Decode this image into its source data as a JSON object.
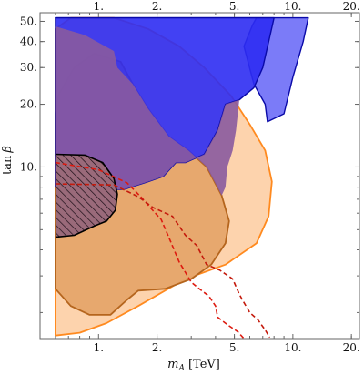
{
  "chart_data": {
    "type": "area",
    "xlabel_parts": {
      "symbol": "m",
      "subscript": "A",
      "unit": "[TeV]"
    },
    "ylabel_parts": {
      "main": "tan",
      "greek": "β"
    },
    "x_scale": "log",
    "y_scale": "log",
    "xlim": [
      0.5,
      22
    ],
    "ylim": [
      1.5,
      55
    ],
    "x_ticks_bottom": [
      {
        "value": 1,
        "label": "1."
      },
      {
        "value": 2,
        "label": "2."
      },
      {
        "value": 5,
        "label": "5."
      },
      {
        "value": 10,
        "label": "10."
      },
      {
        "value": 20,
        "label": "20."
      }
    ],
    "x_ticks_top": [
      {
        "value": 1,
        "label": "1."
      },
      {
        "value": 2,
        "label": "2."
      },
      {
        "value": 5,
        "label": "5."
      },
      {
        "value": 10,
        "label": "10."
      },
      {
        "value": 20,
        "label": "20."
      }
    ],
    "y_ticks": [
      {
        "value": 10,
        "label": "10."
      },
      {
        "value": 20,
        "label": "20."
      },
      {
        "value": 30,
        "label": "30."
      },
      {
        "value": 40,
        "label": "40."
      },
      {
        "value": 50,
        "label": "50."
      }
    ],
    "colors": {
      "light_orange_fill": "#fdd3ad",
      "light_orange_edge": "#ff8a1f",
      "medium_orange_fill": "#e6a56a",
      "medium_orange_edge": "#b5651d",
      "blue_fill": "#2d2cf2",
      "blue_edge": "#0a0aa8",
      "light_blue_fill": "#7b7bf8",
      "purple_fill": "#8a5a9e",
      "dashed_red": "#dd1b10",
      "dashed_red_2": "#c41a0c",
      "hatched_edge": "#000000"
    },
    "regions": [
      {
        "id": "light-orange-region",
        "points": [
          [
            0.6,
            1.55
          ],
          [
            0.8,
            1.6
          ],
          [
            1.1,
            1.78
          ],
          [
            1.6,
            2.15
          ],
          [
            2.8,
            2.9
          ],
          [
            4.5,
            3.4
          ],
          [
            6.5,
            4.3
          ],
          [
            7.5,
            5.8
          ],
          [
            7.8,
            8.5
          ],
          [
            7.2,
            12
          ],
          [
            6,
            16
          ],
          [
            4.8,
            22
          ],
          [
            3.5,
            30
          ],
          [
            2.6,
            38
          ],
          [
            1.8,
            46
          ],
          [
            1.2,
            52
          ],
          [
            0.72,
            52
          ],
          [
            0.6,
            46
          ]
        ]
      },
      {
        "id": "medium-orange-region",
        "points": [
          [
            0.6,
            2.6
          ],
          [
            0.72,
            2.15
          ],
          [
            0.9,
            1.95
          ],
          [
            1.15,
            1.95
          ],
          [
            1.4,
            2.3
          ],
          [
            1.6,
            2.55
          ],
          [
            2.2,
            2.6
          ],
          [
            3,
            2.9
          ],
          [
            3.8,
            3.4
          ],
          [
            4.5,
            4.3
          ],
          [
            4.7,
            5.5
          ],
          [
            4.3,
            7.3
          ],
          [
            3.6,
            10
          ],
          [
            2.9,
            12
          ],
          [
            2.3,
            14
          ],
          [
            1.8,
            19
          ],
          [
            1.5,
            25
          ],
          [
            1.3,
            32
          ],
          [
            0.95,
            35
          ],
          [
            0.75,
            30
          ],
          [
            0.62,
            22
          ],
          [
            0.6,
            18
          ]
        ]
      },
      {
        "id": "light-blue-region",
        "points": [
          [
            0.6,
            52
          ],
          [
            12,
            52
          ],
          [
            11.3,
            40
          ],
          [
            10,
            27
          ],
          [
            9,
            18
          ],
          [
            7.4,
            16.5
          ],
          [
            7.2,
            20
          ],
          [
            6.3,
            25
          ],
          [
            5.6,
            38
          ],
          [
            6.2,
            48
          ],
          [
            6.5,
            52
          ]
        ]
      },
      {
        "id": "blue-region",
        "points": [
          [
            0.6,
            52
          ],
          [
            8,
            52
          ],
          [
            7.6,
            42
          ],
          [
            7,
            30
          ],
          [
            6.3,
            24
          ],
          [
            5.3,
            21
          ],
          [
            4.5,
            20
          ],
          [
            4.1,
            15
          ],
          [
            3.5,
            11.5
          ],
          [
            2.8,
            10.5
          ],
          [
            2.5,
            10.5
          ],
          [
            2.15,
            9
          ],
          [
            1.8,
            8.5
          ],
          [
            1.35,
            7.8
          ],
          [
            0.85,
            7.8
          ],
          [
            0.6,
            8
          ]
        ]
      },
      {
        "id": "purple-overlap-region",
        "points": [
          [
            0.6,
            47.3
          ],
          [
            0.85,
            43
          ],
          [
            1.2,
            36
          ],
          [
            1.25,
            30
          ],
          [
            1.5,
            25
          ],
          [
            1.8,
            19
          ],
          [
            2.3,
            14
          ],
          [
            2.9,
            12
          ],
          [
            3.6,
            10
          ],
          [
            4.3,
            7.3
          ],
          [
            4.5,
            8
          ],
          [
            4.6,
            10
          ],
          [
            4.9,
            12
          ],
          [
            5.1,
            15
          ],
          [
            5.3,
            21
          ],
          [
            4.5,
            20
          ],
          [
            4.1,
            15
          ],
          [
            3.5,
            11.5
          ],
          [
            2.8,
            10.5
          ],
          [
            2.5,
            10.5
          ],
          [
            2.15,
            9
          ],
          [
            1.8,
            8.5
          ],
          [
            1.35,
            7.8
          ],
          [
            0.85,
            7.8
          ],
          [
            0.6,
            8
          ]
        ]
      }
    ],
    "hatched_region": {
      "id": "hatched-excluded-region",
      "points": [
        [
          0.6,
          11.5
        ],
        [
          0.85,
          11.4
        ],
        [
          1.05,
          10.5
        ],
        [
          1.2,
          8.8
        ],
        [
          1.25,
          7.4
        ],
        [
          1.22,
          6.2
        ],
        [
          1.1,
          5.5
        ],
        [
          0.95,
          5.2
        ],
        [
          0.75,
          4.7
        ],
        [
          0.6,
          4.6
        ]
      ]
    },
    "series": [
      {
        "id": "dashed-red-left",
        "x": [
          0.6,
          1.0,
          1.4,
          1.65,
          1.9,
          2.1,
          2.3,
          2.6,
          3.0,
          3.3,
          3.7,
          4.0,
          4.1,
          4.6,
          5.2,
          5.6
        ],
        "y": [
          10.5,
          9.7,
          8.4,
          7.2,
          6.2,
          5.6,
          4.6,
          3.5,
          2.8,
          2.6,
          2.4,
          2.15,
          1.9,
          1.75,
          1.62,
          1.5
        ]
      },
      {
        "id": "dashed-red-right",
        "x": [
          0.6,
          1.2,
          1.6,
          1.9,
          2.4,
          2.8,
          3.2,
          3.6,
          4.2,
          4.9,
          5.3,
          5.5,
          6.0,
          6.6,
          7.2,
          7.6
        ],
        "y": [
          8.3,
          8.2,
          7.2,
          6.4,
          5.8,
          4.7,
          4.2,
          3.4,
          3.2,
          2.9,
          2.45,
          2.3,
          2.0,
          1.85,
          1.65,
          1.52
        ]
      }
    ]
  }
}
